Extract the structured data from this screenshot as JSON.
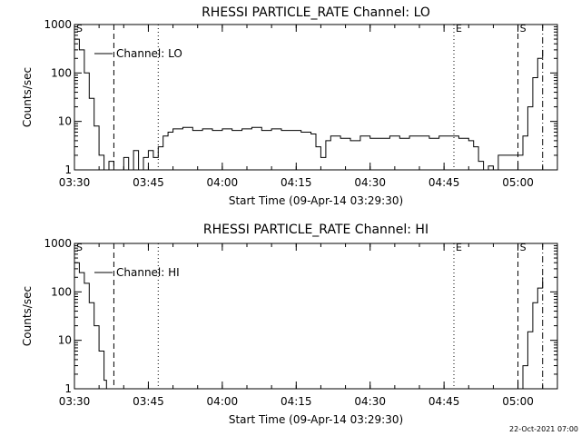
{
  "footer": "22-Oct-2021 07:00",
  "chart_data": [
    {
      "type": "line",
      "title": "RHESSI PARTICLE_RATE Channel: LO",
      "xlabel": "Start Time (09-Apr-14 03:29:30)",
      "ylabel": "Counts/sec",
      "y_scale": "log",
      "ylim": [
        1,
        1000
      ],
      "xlim": [
        "03:30",
        "05:08"
      ],
      "x_ticks": [
        "03:30",
        "03:45",
        "04:00",
        "04:15",
        "04:30",
        "04:45",
        "05:00"
      ],
      "y_ticks": [
        "1",
        "10",
        "100",
        "1000"
      ],
      "legend": {
        "entries": [
          "Channel: LO"
        ],
        "placement": "top-left"
      },
      "markers": [
        {
          "label": "S",
          "time": "03:30",
          "style": "dotted"
        },
        {
          "label": "",
          "time": "03:38",
          "style": "dashed"
        },
        {
          "label": "",
          "time": "03:47",
          "style": "dotted"
        },
        {
          "label": "E",
          "time": "04:47",
          "style": "dotted"
        },
        {
          "label": "S",
          "time": "05:00",
          "style": "dashed"
        },
        {
          "label": "",
          "time": "05:05",
          "style": "dashdot"
        }
      ],
      "series": [
        {
          "name": "Channel: LO",
          "x": [
            "03:30",
            "03:31",
            "03:32",
            "03:33",
            "03:34",
            "03:35",
            "03:36",
            "03:37",
            "03:38",
            "03:39",
            "03:40",
            "03:41",
            "03:42",
            "03:43",
            "03:44",
            "03:45",
            "03:46",
            "03:47",
            "03:48",
            "03:49",
            "03:50",
            "03:52",
            "03:54",
            "03:56",
            "03:58",
            "04:00",
            "04:02",
            "04:04",
            "04:06",
            "04:08",
            "04:10",
            "04:12",
            "04:14",
            "04:16",
            "04:18",
            "04:19",
            "04:20",
            "04:21",
            "04:22",
            "04:24",
            "04:26",
            "04:28",
            "04:30",
            "04:32",
            "04:34",
            "04:36",
            "04:38",
            "04:40",
            "04:42",
            "04:44",
            "04:46",
            "04:48",
            "04:50",
            "04:51",
            "04:52",
            "04:53",
            "04:54",
            "04:55",
            "04:56",
            "04:58",
            "05:00",
            "05:01",
            "05:02",
            "05:03",
            "05:04",
            "05:05"
          ],
          "values": [
            500,
            300,
            100,
            30,
            8,
            2,
            1,
            1.5,
            1,
            1,
            1.8,
            1,
            2.5,
            1,
            1.8,
            2.5,
            1.8,
            3,
            5,
            6,
            7,
            7.5,
            6.5,
            7,
            6.5,
            7,
            6.5,
            7,
            7.5,
            6.5,
            7,
            6.5,
            6.5,
            6,
            5.5,
            3,
            1.8,
            4,
            5,
            4.5,
            4,
            5,
            4.5,
            4.5,
            5,
            4.5,
            5,
            5,
            4.5,
            5,
            5,
            4.5,
            4,
            3,
            1.5,
            1,
            1.2,
            1,
            2,
            2,
            2,
            5,
            20,
            80,
            200,
            300
          ]
        }
      ]
    },
    {
      "type": "line",
      "title": "RHESSI PARTICLE_RATE Channel: HI",
      "xlabel": "Start Time (09-Apr-14 03:29:30)",
      "ylabel": "Counts/sec",
      "y_scale": "log",
      "ylim": [
        1,
        1000
      ],
      "xlim": [
        "03:30",
        "05:08"
      ],
      "x_ticks": [
        "03:30",
        "03:45",
        "04:00",
        "04:15",
        "04:30",
        "04:45",
        "05:00"
      ],
      "y_ticks": [
        "1",
        "10",
        "100",
        "1000"
      ],
      "legend": {
        "entries": [
          "Channel: HI"
        ],
        "placement": "top-left"
      },
      "markers": [
        {
          "label": "S",
          "time": "03:30",
          "style": "dotted"
        },
        {
          "label": "",
          "time": "03:38",
          "style": "dashed"
        },
        {
          "label": "",
          "time": "03:47",
          "style": "dotted"
        },
        {
          "label": "E",
          "time": "04:47",
          "style": "dotted"
        },
        {
          "label": "S",
          "time": "05:00",
          "style": "dashed"
        },
        {
          "label": "",
          "time": "05:05",
          "style": "dashdot"
        }
      ],
      "series": [
        {
          "name": "Channel: HI",
          "x": [
            "03:30",
            "03:31",
            "03:32",
            "03:33",
            "03:34",
            "03:35",
            "03:36",
            "03:36.5",
            "05:00",
            "05:01",
            "05:02",
            "05:03",
            "05:04",
            "05:05"
          ],
          "values": [
            400,
            250,
            150,
            60,
            20,
            6,
            1.5,
            1,
            1,
            3,
            15,
            60,
            120,
            200
          ]
        }
      ]
    }
  ]
}
